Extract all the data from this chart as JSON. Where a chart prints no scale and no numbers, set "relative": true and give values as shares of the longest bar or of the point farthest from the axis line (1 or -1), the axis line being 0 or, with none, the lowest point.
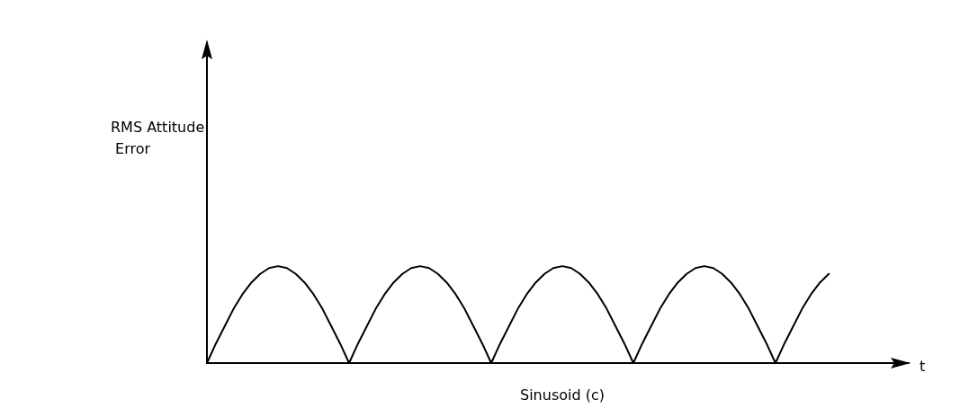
{
  "chart_data": {
    "type": "line",
    "relative": true,
    "title": "Sinusoid (c)",
    "annotations": [
      "RMS Attitude Error",
      "t"
    ],
    "grid": false,
    "marker": "none",
    "line_style": "solid",
    "categories": [
      null,
      null,
      null,
      null,
      null,
      null,
      null,
      null,
      null,
      null,
      null,
      null,
      null,
      null,
      null,
      null,
      null,
      null,
      null,
      null,
      null,
      null,
      null,
      null,
      null,
      null,
      null,
      null,
      null,
      null,
      null,
      null,
      null,
      null,
      null,
      null,
      null,
      null,
      null,
      null,
      null,
      null,
      null,
      null,
      null,
      null,
      null,
      null,
      null,
      null,
      null,
      null,
      null,
      null,
      null,
      null,
      null,
      null,
      null,
      null,
      null,
      null,
      null,
      null,
      null,
      null,
      null,
      null,
      null,
      null,
      null
    ],
    "series": [
      {
        "color": "#000000",
        "values": [
          0,
          0.2,
          0.38,
          0.56,
          0.71,
          0.83,
          0.92,
          0.98,
          1,
          0.98,
          0.92,
          0.83,
          0.71,
          0.56,
          0.38,
          0.2,
          0,
          0.2,
          0.38,
          0.56,
          0.71,
          0.83,
          0.92,
          0.98,
          1,
          0.98,
          0.92,
          0.83,
          0.71,
          0.56,
          0.38,
          0.2,
          0,
          0.2,
          0.38,
          0.56,
          0.71,
          0.83,
          0.92,
          0.98,
          1,
          0.98,
          0.92,
          0.83,
          0.71,
          0.56,
          0.38,
          0.2,
          0,
          0.2,
          0.38,
          0.56,
          0.71,
          0.83,
          0.92,
          0.98,
          1,
          0.98,
          0.92,
          0.83,
          0.71,
          0.56,
          0.38,
          0.2,
          0,
          0.2,
          0.38,
          0.56,
          0.71,
          0.83,
          0.92
        ]
      }
    ]
  }
}
